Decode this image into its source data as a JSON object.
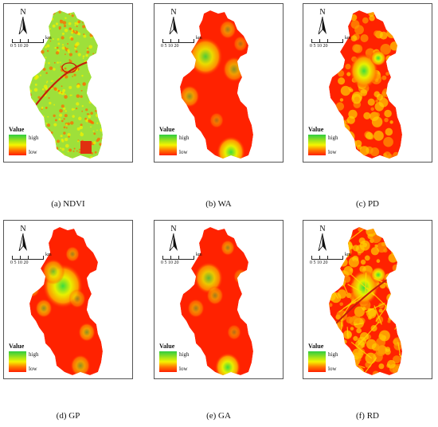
{
  "panels": [
    {
      "id": "ndvi",
      "caption": "(a) NDVI",
      "legend_title": "Value",
      "legend_high": "high",
      "legend_low": "low",
      "north": "N",
      "scale_numbers": "0  5  10    20",
      "scale_unit": "km",
      "style": "ndvi"
    },
    {
      "id": "wa",
      "caption": "(b) WA",
      "legend_title": "Value",
      "legend_high": "high",
      "legend_low": "low",
      "north": "N",
      "scale_numbers": "0  5  10    20",
      "scale_unit": "km",
      "style": "blobs"
    },
    {
      "id": "pd",
      "caption": "(c) PD",
      "legend_title": "Value",
      "legend_high": "high",
      "legend_low": "low",
      "north": "N",
      "scale_numbers": "0  5  10    20",
      "scale_unit": "km",
      "style": "pd"
    },
    {
      "id": "gp",
      "caption": "(d) GP",
      "legend_title": "Value",
      "legend_high": "high",
      "legend_low": "low",
      "north": "N",
      "scale_numbers": "0  5  10    20",
      "scale_unit": "km",
      "style": "gp"
    },
    {
      "id": "ga",
      "caption": "(e) GA",
      "legend_title": "Value",
      "legend_high": "high",
      "legend_low": "low",
      "north": "N",
      "scale_numbers": "0  5  10    20",
      "scale_unit": "km",
      "style": "ga"
    },
    {
      "id": "rd",
      "caption": "(f) RD",
      "legend_title": "Value",
      "legend_high": "high",
      "legend_low": "low",
      "north": "N",
      "scale_numbers": "0  5  10    20",
      "scale_unit": "km",
      "style": "rd"
    }
  ],
  "colors": {
    "high": "#2ecc40",
    "mid": "#f5f500",
    "low": "#ff1e00",
    "border": "#555555"
  }
}
